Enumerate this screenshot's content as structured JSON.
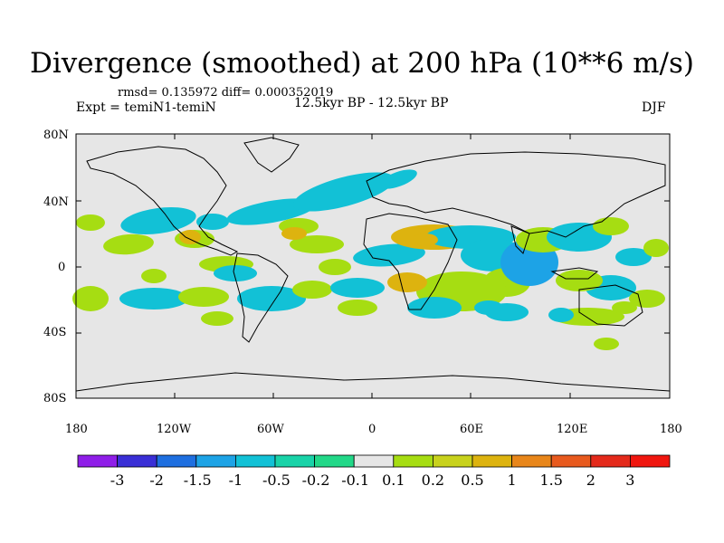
{
  "figure": {
    "title": "Divergence (smoothed) at 200 hPa (10**6 m/s)",
    "stats": "rmsd= 0.135972 diff= 0.000352019",
    "experiment": "Expt = temiN1-temiN",
    "period": "12.5kyr BP - 12.5kyr BP",
    "season": "DJF"
  },
  "axes": {
    "lat_labels": [
      "80N",
      "40N",
      "0",
      "40S",
      "80S"
    ],
    "lon_labels": [
      "180",
      "120W",
      "60W",
      "0",
      "60E",
      "120E",
      "180"
    ]
  },
  "colorbar": {
    "labels": [
      "-3",
      "-2",
      "-1.5",
      "-1",
      "-0.5",
      "-0.2",
      "-0.1",
      "0.1",
      "0.2",
      "0.5",
      "1",
      "1.5",
      "2",
      "3"
    ],
    "colors": [
      "#8f1ee8",
      "#3a2fd6",
      "#1e6fe0",
      "#1da3e6",
      "#12c1d6",
      "#19d3a8",
      "#22d888",
      "#e6e6e6",
      "#a6dd12",
      "#c8d21c",
      "#ddb30f",
      "#e8861a",
      "#e85a1e",
      "#e42a1b",
      "#f0160f"
    ]
  },
  "map_fields": {
    "positive_color_low": "#a6dd12",
    "positive_color_mid": "#ddb30f",
    "negative_color_low": "#12c1d6",
    "negative_color_mid": "#1da3e6",
    "background": "#e6e6e6"
  }
}
